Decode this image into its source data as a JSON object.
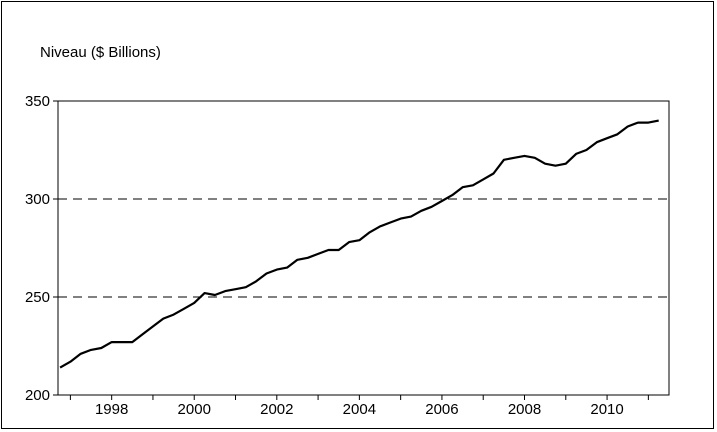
{
  "chart_data": {
    "type": "line",
    "title": "",
    "ylabel": "Niveau ($ Billions)",
    "xlabel": "",
    "ylim": [
      200,
      350
    ],
    "xlim": [
      1996.7,
      2011.5
    ],
    "yticks": [
      200,
      250,
      300,
      350
    ],
    "xticks": [
      1998,
      2000,
      2002,
      2004,
      2006,
      2008,
      2010
    ],
    "grid": "horizontal-dashed",
    "series": [
      {
        "x": [
          1996.75,
          1997.0,
          1997.25,
          1997.5,
          1997.75,
          1998.0,
          1998.25,
          1998.5,
          1998.75,
          1999.0,
          1999.25,
          1999.5,
          1999.75,
          2000.0,
          2000.25,
          2000.5,
          2000.75,
          2001.0,
          2001.25,
          2001.5,
          2001.75,
          2002.0,
          2002.25,
          2002.5,
          2002.75,
          2003.0,
          2003.25,
          2003.5,
          2003.75,
          2004.0,
          2004.25,
          2004.5,
          2004.75,
          2005.0,
          2005.25,
          2005.5,
          2005.75,
          2006.0,
          2006.25,
          2006.5,
          2006.75,
          2007.0,
          2007.25,
          2007.5,
          2007.75,
          2008.0,
          2008.25,
          2008.5,
          2008.75,
          2009.0,
          2009.25,
          2009.5,
          2009.75,
          2010.0,
          2010.25,
          2010.5,
          2010.75,
          2011.0,
          2011.25
        ],
        "values": [
          214,
          217,
          221,
          223,
          224,
          227,
          227,
          227,
          231,
          235,
          239,
          241,
          244,
          247,
          252,
          251,
          253,
          254,
          255,
          258,
          262,
          264,
          265,
          269,
          270,
          272,
          274,
          274,
          278,
          279,
          283,
          286,
          288,
          290,
          291,
          294,
          296,
          299,
          302,
          306,
          307,
          310,
          313,
          320,
          321,
          322,
          321,
          318,
          317,
          318,
          323,
          325,
          329,
          331,
          333,
          337,
          339,
          339,
          340
        ]
      }
    ]
  }
}
